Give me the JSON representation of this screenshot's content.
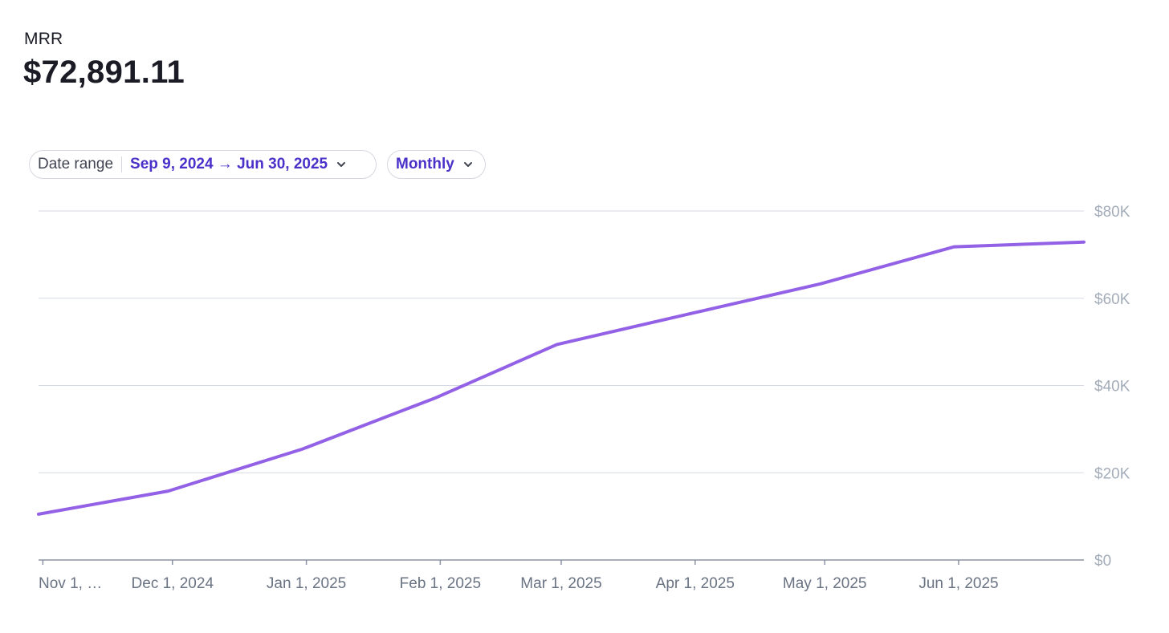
{
  "metric": {
    "label": "MRR",
    "value": "$72,891.11"
  },
  "filters": {
    "date_range_label": "Date range",
    "date_range_value": "Sep 9, 2024 → Jun 30, 2025",
    "interval_value": "Monthly"
  },
  "colors": {
    "line": "#9361e6",
    "grid": "#d5d9e2",
    "axis": "#8a93a3",
    "tick_text": "#a3acb9",
    "x_tick_text": "#6a7383",
    "accent": "#4b31c9"
  },
  "icons": {
    "date_range_chevron": "chevron-down-icon",
    "interval_chevron": "chevron-down-icon"
  },
  "chart_data": {
    "type": "line",
    "title": "",
    "xlabel": "",
    "ylabel": "",
    "y_axis_side": "right",
    "grid": true,
    "ylim": [
      0,
      80000
    ],
    "y_ticks": [
      0,
      20000,
      40000,
      60000,
      80000
    ],
    "y_tick_labels": [
      "$0",
      "$20K",
      "$40K",
      "$60K",
      "$80K"
    ],
    "xlim": [
      "2024-10-31",
      "2025-06-30"
    ],
    "x_ticks": [
      "2024-11-01",
      "2024-12-01",
      "2025-01-01",
      "2025-02-01",
      "2025-03-01",
      "2025-04-01",
      "2025-05-01",
      "2025-06-01"
    ],
    "x_tick_labels": [
      "Nov 1, …",
      "Dec 1, 2024",
      "Jan 1, 2025",
      "Feb 1, 2025",
      "Mar 1, 2025",
      "Apr 1, 2025",
      "May 1, 2025",
      "Jun 1, 2025"
    ],
    "series": [
      {
        "x": [
          "2024-10-31",
          "2024-11-30",
          "2024-12-31",
          "2025-01-31",
          "2025-02-28",
          "2025-03-31",
          "2025-04-30",
          "2025-05-31",
          "2025-06-30"
        ],
        "y": [
          10500,
          15800,
          25400,
          37200,
          49400,
          56500,
          63300,
          71800,
          72891.11
        ]
      }
    ]
  }
}
